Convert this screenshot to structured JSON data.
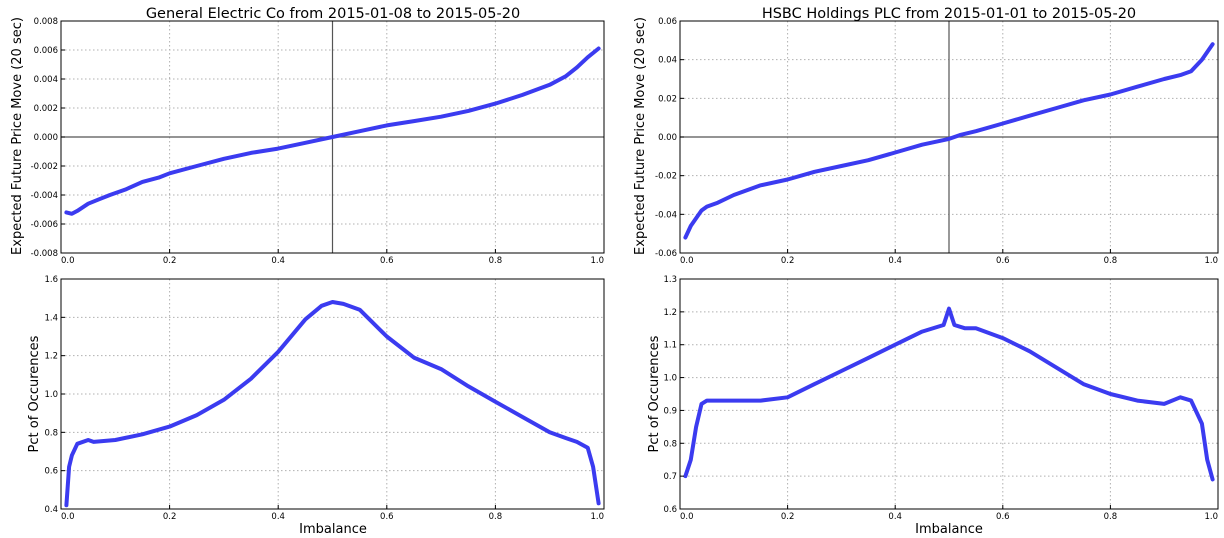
{
  "chart_data": [
    {
      "type": "line",
      "title": "General Electric Co from 2015-01-08 to 2015-05-20",
      "xlabel": "",
      "ylabel": "Expected Future Price Move (20 sec)",
      "xlim": [
        0.0,
        1.0
      ],
      "ylim": [
        -0.008,
        0.008
      ],
      "xticks": [
        "0.0",
        "0.2",
        "0.4",
        "0.6",
        "0.8",
        "1.0"
      ],
      "yticks": [
        "-0.008",
        "-0.006",
        "-0.004",
        "-0.002",
        "0.000",
        "0.002",
        "0.004",
        "0.006",
        "0.008"
      ],
      "grid": true,
      "color": "#3b3bf0",
      "ref_vline": 0.5,
      "ref_hline": 0.0,
      "series": [
        {
          "x": [
            0.01,
            0.02,
            0.03,
            0.05,
            0.07,
            0.09,
            0.12,
            0.15,
            0.18,
            0.2,
            0.25,
            0.3,
            0.35,
            0.4,
            0.45,
            0.5,
            0.55,
            0.6,
            0.65,
            0.7,
            0.75,
            0.8,
            0.85,
            0.9,
            0.93,
            0.95,
            0.97,
            0.99
          ],
          "y": [
            -0.0052,
            -0.0053,
            -0.0051,
            -0.0046,
            -0.0043,
            -0.004,
            -0.0036,
            -0.0031,
            -0.0028,
            -0.0025,
            -0.002,
            -0.0015,
            -0.0011,
            -0.0008,
            -0.0004,
            0.0,
            0.0004,
            0.0008,
            0.0011,
            0.0014,
            0.0018,
            0.0023,
            0.0029,
            0.0036,
            0.0042,
            0.0048,
            0.0055,
            0.0061
          ]
        }
      ]
    },
    {
      "type": "line",
      "title": "HSBC Holdings PLC from 2015-01-01 to 2015-05-20",
      "xlabel": "",
      "ylabel": "Expected Future Price Move (20 sec)",
      "xlim": [
        0.0,
        1.0
      ],
      "ylim": [
        -0.06,
        0.06
      ],
      "xticks": [
        "0.0",
        "0.2",
        "0.4",
        "0.6",
        "0.8",
        "1.0"
      ],
      "yticks": [
        "-0.06",
        "-0.04",
        "-0.02",
        "0.00",
        "0.02",
        "0.04",
        "0.06"
      ],
      "grid": true,
      "color": "#3b3bf0",
      "ref_vline": 0.5,
      "ref_hline": 0.0,
      "series": [
        {
          "x": [
            0.01,
            0.02,
            0.03,
            0.04,
            0.05,
            0.07,
            0.1,
            0.15,
            0.2,
            0.25,
            0.3,
            0.35,
            0.4,
            0.45,
            0.5,
            0.52,
            0.55,
            0.6,
            0.65,
            0.7,
            0.75,
            0.8,
            0.85,
            0.9,
            0.93,
            0.95,
            0.97,
            0.99
          ],
          "y": [
            -0.052,
            -0.046,
            -0.042,
            -0.038,
            -0.036,
            -0.034,
            -0.03,
            -0.025,
            -0.022,
            -0.018,
            -0.015,
            -0.012,
            -0.008,
            -0.004,
            -0.001,
            0.001,
            0.003,
            0.007,
            0.011,
            0.015,
            0.019,
            0.022,
            0.026,
            0.03,
            0.032,
            0.034,
            0.04,
            0.048
          ]
        }
      ]
    },
    {
      "type": "line",
      "title": "",
      "xlabel": "Imbalance",
      "ylabel": "Pct of Occurences",
      "xlim": [
        0.0,
        1.0
      ],
      "ylim": [
        0.4,
        1.6
      ],
      "xticks": [
        "0.0",
        "0.2",
        "0.4",
        "0.6",
        "0.8",
        "1.0"
      ],
      "yticks": [
        "0.4",
        "0.6",
        "0.8",
        "1.0",
        "1.2",
        "1.4",
        "1.6"
      ],
      "grid": true,
      "color": "#3b3bf0",
      "series": [
        {
          "x": [
            0.01,
            0.015,
            0.02,
            0.03,
            0.05,
            0.06,
            0.1,
            0.15,
            0.2,
            0.25,
            0.3,
            0.35,
            0.4,
            0.45,
            0.48,
            0.5,
            0.52,
            0.55,
            0.6,
            0.65,
            0.7,
            0.75,
            0.8,
            0.85,
            0.9,
            0.93,
            0.95,
            0.97,
            0.98,
            0.99
          ],
          "y": [
            0.42,
            0.62,
            0.68,
            0.74,
            0.76,
            0.75,
            0.76,
            0.79,
            0.83,
            0.89,
            0.97,
            1.08,
            1.22,
            1.39,
            1.46,
            1.48,
            1.47,
            1.44,
            1.3,
            1.19,
            1.13,
            1.04,
            0.96,
            0.88,
            0.8,
            0.77,
            0.75,
            0.72,
            0.62,
            0.43
          ]
        }
      ]
    },
    {
      "type": "line",
      "title": "",
      "xlabel": "Imbalance",
      "ylabel": "Pct of Occurences",
      "xlim": [
        0.0,
        1.0
      ],
      "ylim": [
        0.6,
        1.3
      ],
      "xticks": [
        "0.0",
        "0.2",
        "0.4",
        "0.6",
        "0.8",
        "1.0"
      ],
      "yticks": [
        "0.6",
        "0.7",
        "0.8",
        "0.9",
        "1.0",
        "1.1",
        "1.2",
        "1.3"
      ],
      "grid": true,
      "color": "#3b3bf0",
      "series": [
        {
          "x": [
            0.01,
            0.02,
            0.03,
            0.04,
            0.05,
            0.07,
            0.1,
            0.15,
            0.2,
            0.25,
            0.3,
            0.35,
            0.4,
            0.45,
            0.49,
            0.5,
            0.51,
            0.53,
            0.55,
            0.6,
            0.65,
            0.7,
            0.75,
            0.8,
            0.85,
            0.9,
            0.93,
            0.95,
            0.97,
            0.98,
            0.99
          ],
          "y": [
            0.7,
            0.75,
            0.85,
            0.92,
            0.93,
            0.93,
            0.93,
            0.93,
            0.94,
            0.98,
            1.02,
            1.06,
            1.1,
            1.14,
            1.16,
            1.21,
            1.16,
            1.15,
            1.15,
            1.12,
            1.08,
            1.03,
            0.98,
            0.95,
            0.93,
            0.92,
            0.94,
            0.93,
            0.86,
            0.75,
            0.69
          ]
        }
      ]
    }
  ]
}
